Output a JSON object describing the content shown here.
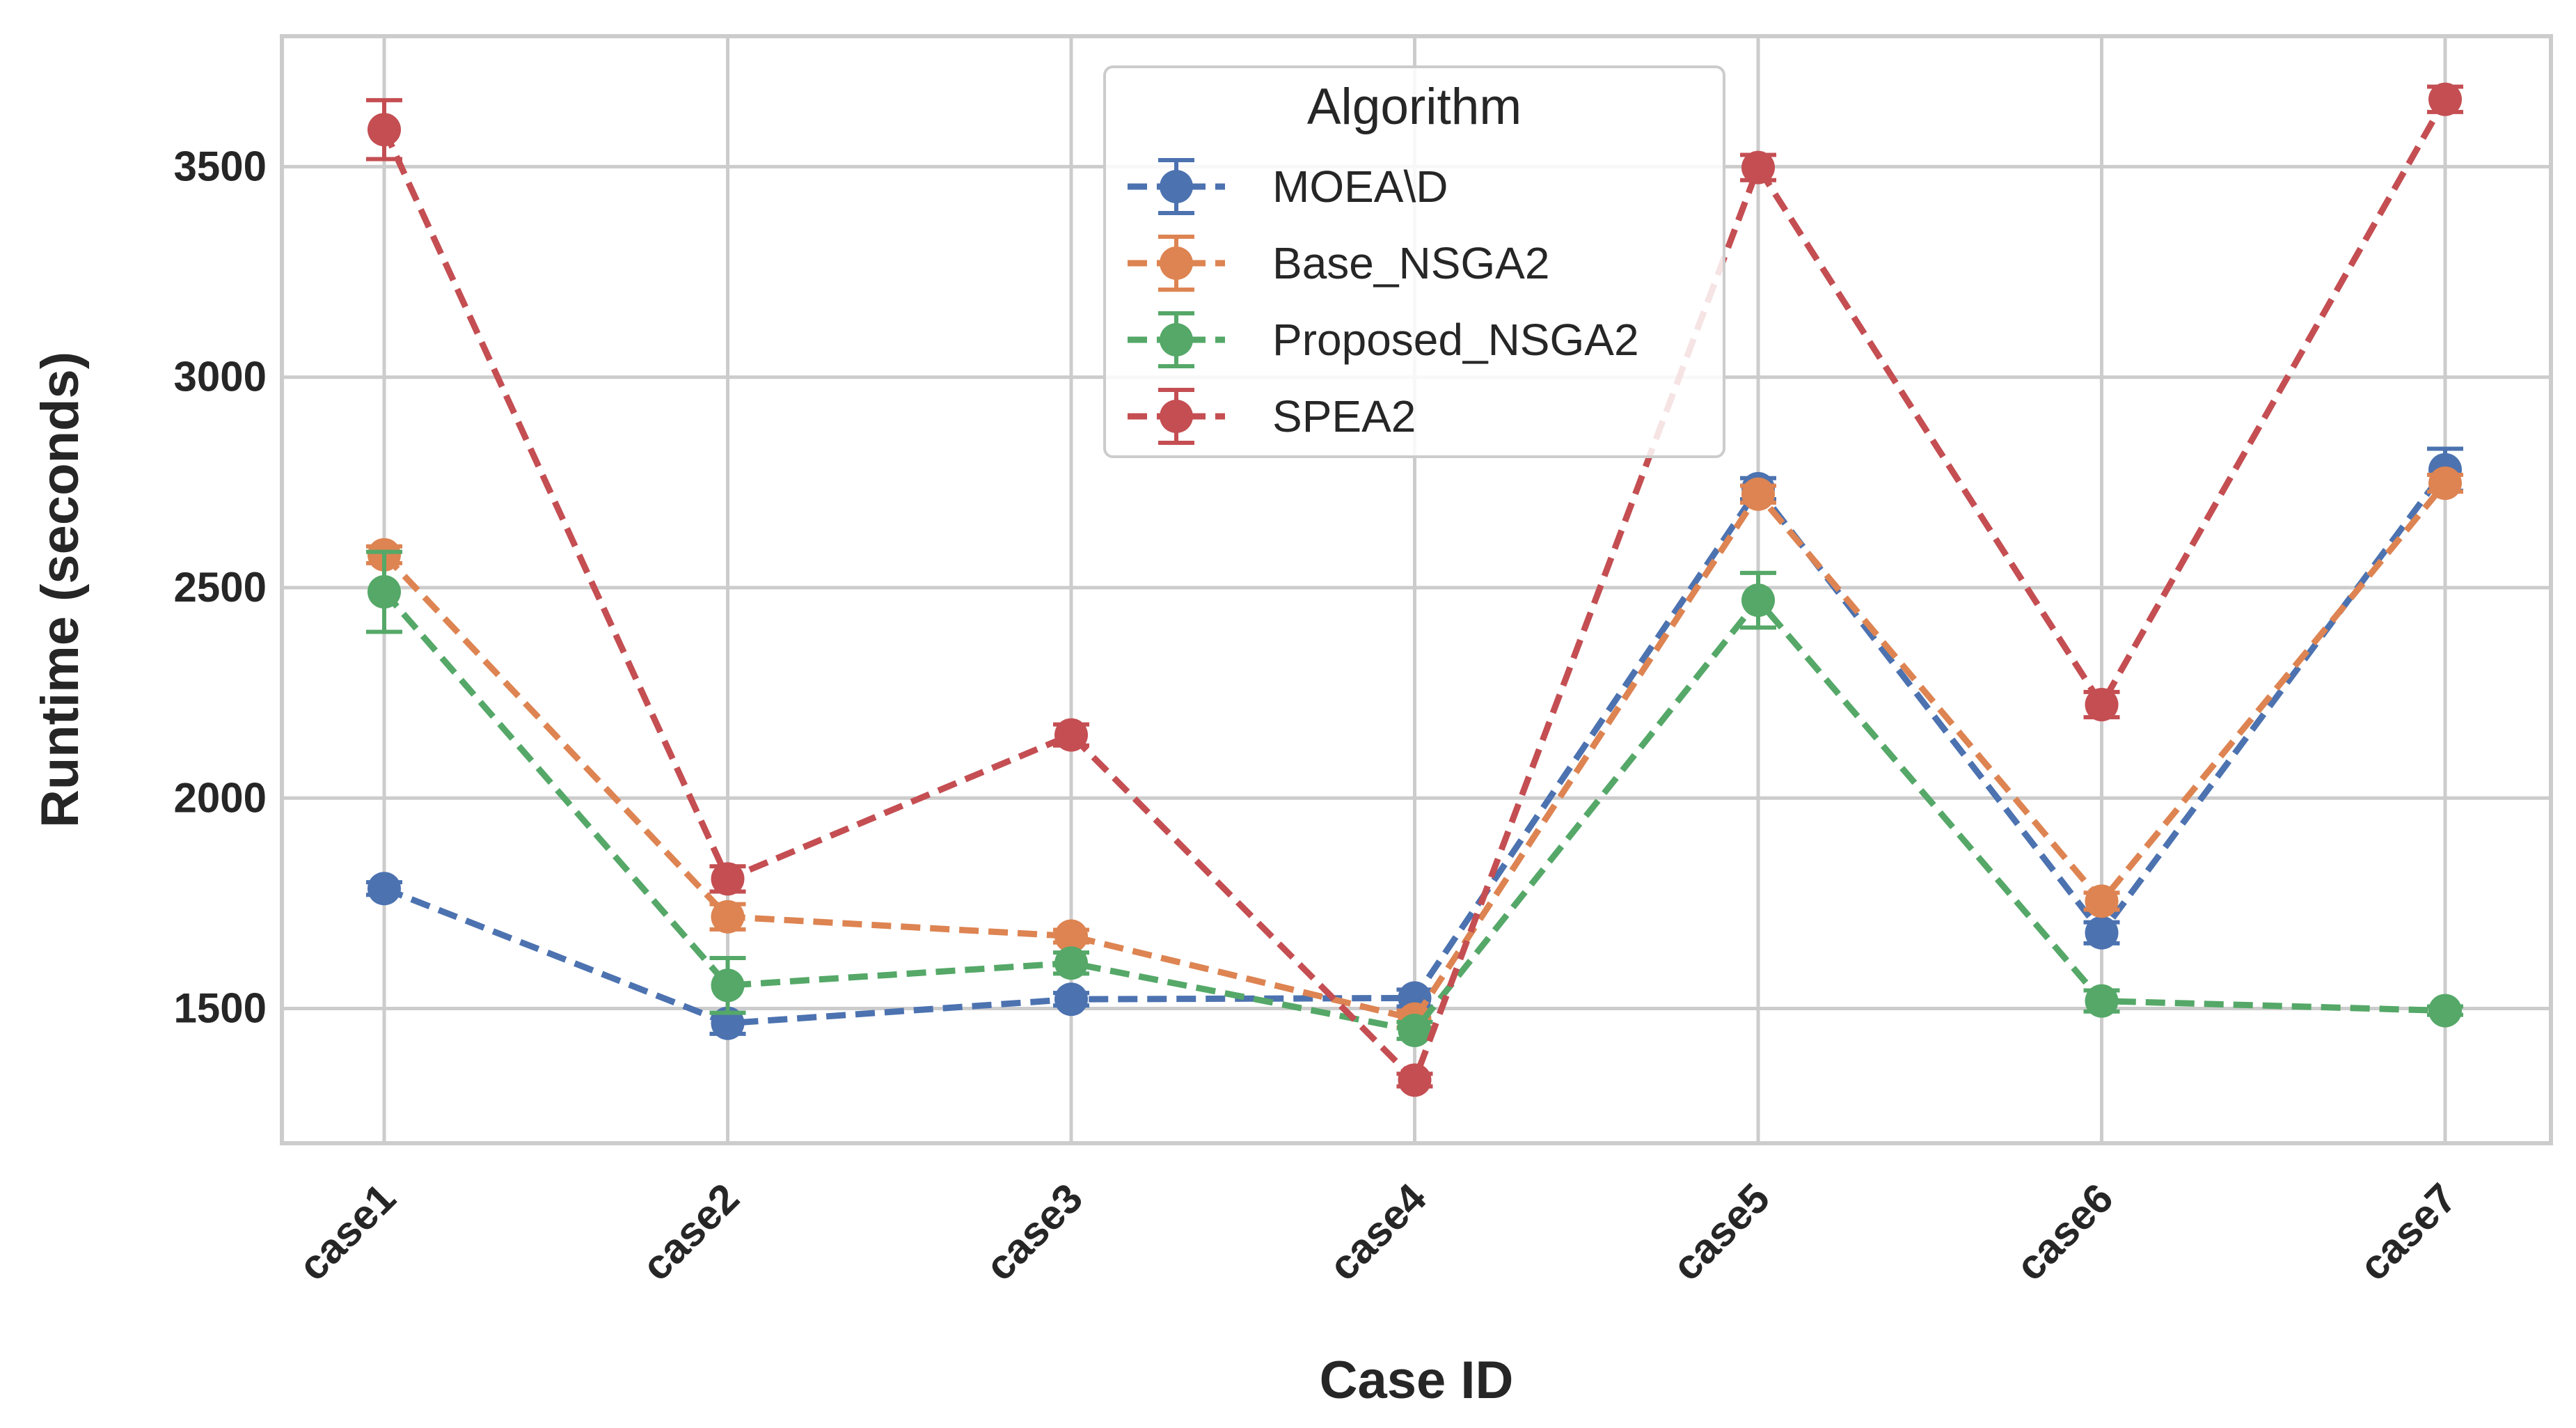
{
  "chart_data": {
    "type": "line",
    "title": "",
    "xlabel": "Case ID",
    "ylabel": "Runtime (seconds)",
    "categories": [
      "case1",
      "case2",
      "case3",
      "case4",
      "case5",
      "case6",
      "case7"
    ],
    "ylim": [
      1180,
      3810
    ],
    "yticks": [
      1500,
      2000,
      2500,
      3000,
      3500
    ],
    "grid": true,
    "legend": {
      "title": "Algorithm",
      "placement": "top-center"
    },
    "series": [
      {
        "name": "MOEA\\D",
        "color": "#4c72b0",
        "values": [
          1785,
          1465,
          1522,
          1525,
          2735,
          1680,
          2780
        ],
        "errors": [
          15,
          25,
          15,
          20,
          25,
          25,
          50
        ]
      },
      {
        "name": "Base_NSGA2",
        "color": "#dd8452",
        "values": [
          2578,
          1718,
          1672,
          1475,
          2722,
          1755,
          2748
        ],
        "errors": [
          20,
          30,
          15,
          20,
          20,
          20,
          20
        ]
      },
      {
        "name": "Proposed_NSGA2",
        "color": "#55a868",
        "values": [
          2490,
          1555,
          1608,
          1448,
          2470,
          1518,
          1495
        ],
        "errors": [
          95,
          65,
          25,
          20,
          65,
          25,
          10
        ]
      },
      {
        "name": "SPEA2",
        "color": "#c44e52",
        "values": [
          3588,
          1808,
          2150,
          1330,
          3498,
          2222,
          3660
        ],
        "errors": [
          70,
          30,
          25,
          15,
          30,
          30,
          30
        ]
      }
    ]
  }
}
